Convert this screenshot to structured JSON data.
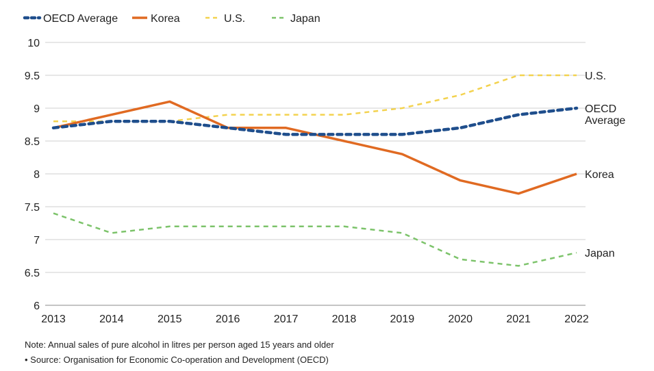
{
  "chart_data": {
    "type": "line",
    "title": "",
    "xlabel": "",
    "ylabel": "",
    "x": [
      "2013",
      "2014",
      "2015",
      "2016",
      "2017",
      "2018",
      "2019",
      "2020",
      "2021",
      "2022"
    ],
    "ylim": [
      6,
      10
    ],
    "yticks": [
      "6",
      "6.5",
      "7",
      "7.5",
      "8",
      "8.5",
      "9",
      "9.5",
      "10"
    ],
    "grid": true,
    "legend_position": "top-left",
    "series": [
      {
        "name": "OECD Average",
        "end_label": [
          "OECD",
          "Average"
        ],
        "color": "#1f4e8c",
        "style": "dotted",
        "values": [
          8.7,
          8.8,
          8.8,
          8.7,
          8.6,
          8.6,
          8.6,
          8.7,
          8.9,
          9.0
        ]
      },
      {
        "name": "Korea",
        "end_label": [
          "Korea"
        ],
        "color": "#e06a22",
        "style": "solid",
        "values": [
          8.7,
          8.9,
          9.1,
          8.7,
          8.7,
          8.5,
          8.3,
          7.9,
          7.7,
          8.0
        ]
      },
      {
        "name": "U.S.",
        "end_label": [
          "U.S."
        ],
        "color": "#f3d24e",
        "style": "dashed",
        "values": [
          8.8,
          8.8,
          8.8,
          8.9,
          8.9,
          8.9,
          9.0,
          9.2,
          9.5,
          9.5
        ]
      },
      {
        "name": "Japan",
        "end_label": [
          "Japan"
        ],
        "color": "#7cc36a",
        "style": "dashed",
        "values": [
          7.4,
          7.1,
          7.2,
          7.2,
          7.2,
          7.2,
          7.1,
          6.7,
          6.6,
          6.8
        ]
      }
    ]
  },
  "notes": {
    "note": "Note: Annual sales of pure alcohol in litres per person aged 15 years and older",
    "source": "• Source: Organisation for Economic Co-operation and Development (OECD)"
  }
}
